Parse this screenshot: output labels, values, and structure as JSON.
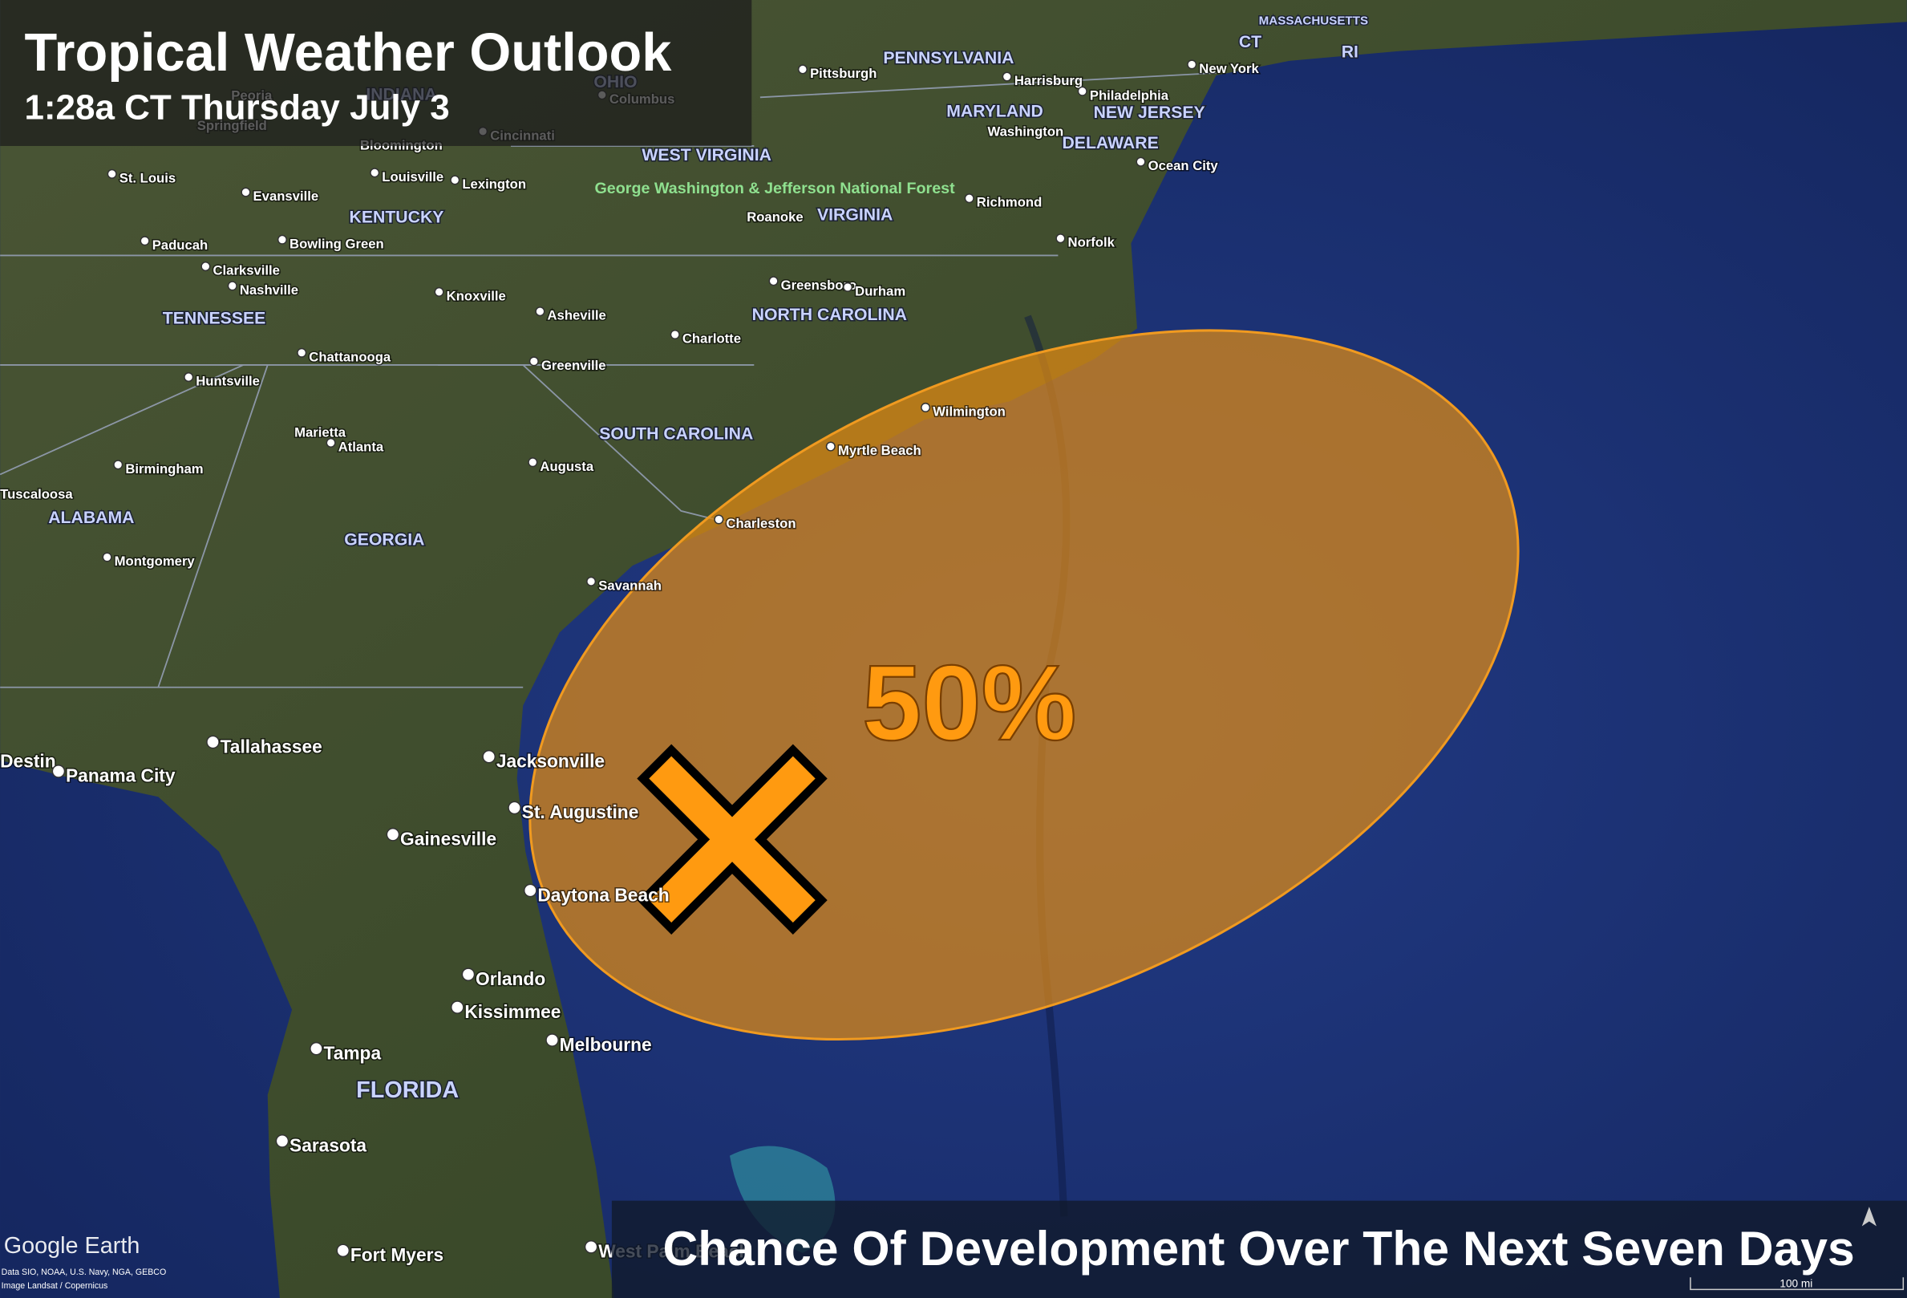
{
  "header": {
    "title": "Tropical Weather Outlook",
    "subtitle": "1:28a CT Thursday July 3"
  },
  "outlook": {
    "chance": "50%",
    "caption": "Chance Of Development Over The Next Seven Days"
  },
  "branding": {
    "logo": "Google Earth",
    "attribution": [
      "Data SIO, NOAA, U.S. Navy, NGA, GEBCO",
      "Image Landsat / Copernicus"
    ],
    "scale": "100 mi"
  },
  "forest": "George Washington & Jefferson National Forest",
  "states": [
    "PENNSYLVANIA",
    "MARYLAND",
    "NEW JERSEY",
    "DELAWARE",
    "MASSACHUSETTS",
    "CT",
    "RI",
    "OHIO",
    "INDIANA",
    "WEST VIRGINIA",
    "KENTUCKY",
    "VIRGINIA",
    "TENNESSEE",
    "NORTH CAROLINA",
    "SOUTH CAROLINA",
    "ALABAMA",
    "GEORGIA",
    "FLORIDA"
  ],
  "cities": [
    "Pittsburgh",
    "Harrisburg",
    "Philadelphia",
    "New York",
    "Washington",
    "Ocean City",
    "Richmond",
    "Norfolk",
    "Columbus",
    "Cincinnati",
    "Bloomington",
    "Springfield",
    "Peoria",
    "St. Louis",
    "Evansville",
    "Louisville",
    "Lexington",
    "Paducah",
    "Bowling Green",
    "Clarksville",
    "Nashville",
    "Knoxville",
    "Asheville",
    "Roanoke",
    "Greensboro",
    "Durham",
    "Charlotte",
    "Chattanooga",
    "Greenville",
    "Huntsville",
    "Marietta",
    "Atlanta",
    "Birmingham",
    "Tuscaloosa",
    "Augusta",
    "Myrtle Beach",
    "Wilmington",
    "Charleston",
    "Montgomery",
    "Savannah",
    "Tallahassee",
    "Destin",
    "Panama City",
    "Jacksonville",
    "St. Augustine",
    "Gainesville",
    "Daytona Beach",
    "Orlando",
    "Kissimmee",
    "Melbourne",
    "Tampa",
    "Sarasota",
    "Fort Myers",
    "West Palm Beach"
  ]
}
